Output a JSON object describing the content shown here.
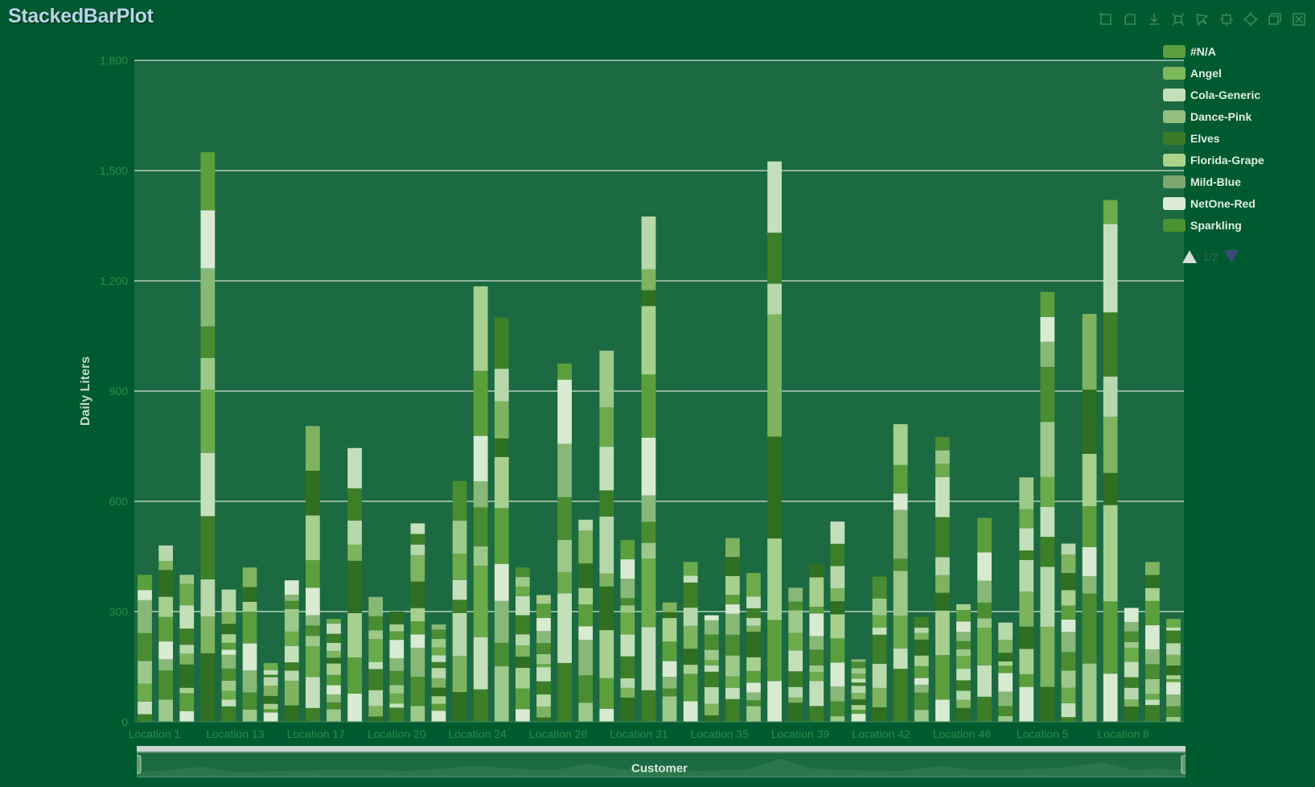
{
  "title": "StackedBarPlot",
  "toolbar": {
    "icons": [
      "rect-select-icon",
      "clear-select-icon",
      "download-icon",
      "zoom-rect-icon",
      "lasso-icon",
      "zoom-in-icon",
      "zoom-out-icon",
      "restore-icon",
      "close-icon"
    ]
  },
  "legend": {
    "items": [
      {
        "label": "#N/A",
        "color": "#5d9e3e"
      },
      {
        "label": "Angel",
        "color": "#7cb85a"
      },
      {
        "label": "Cola-Generic",
        "color": "#c2dfb8"
      },
      {
        "label": "Dance-Pink",
        "color": "#93bf80"
      },
      {
        "label": "Elves",
        "color": "#3b7a27"
      },
      {
        "label": "Florida-Grape",
        "color": "#a9d489"
      },
      {
        "label": "Mild-Blue",
        "color": "#7ea670"
      },
      {
        "label": "NetOne-Red",
        "color": "#dcebd4"
      },
      {
        "label": "Sparkling",
        "color": "#4b9330"
      }
    ],
    "page": "1/2"
  },
  "chart_data": {
    "type": "bar",
    "stacked": true,
    "ylabel": "Daily Liters",
    "xlabel": "Customer",
    "ylim": [
      0,
      1800
    ],
    "yticks": [
      0,
      300,
      600,
      900,
      1200,
      1500,
      1800
    ],
    "x_tick_labels": [
      "Location 1",
      "Location 13",
      "Location 17",
      "Location 20",
      "Location 24",
      "Location 28",
      "Location 31",
      "Location 35",
      "Location 39",
      "Location 42",
      "Location 46",
      "Location 5",
      "Location 8"
    ],
    "grid": true,
    "legend_position": "right",
    "stack_colors": [
      "#3d7f28",
      "#c4e0ba",
      "#6bab4c",
      "#9cc98a",
      "#4a8c31",
      "#88b878",
      "#d8ead0",
      "#5b9f3d",
      "#a7d08f",
      "#2f6f22",
      "#7eb35f",
      "#b7d8aa"
    ],
    "bar_totals": [
      400,
      480,
      400,
      1550,
      360,
      420,
      160,
      385,
      805,
      280,
      745,
      340,
      300,
      540,
      265,
      655,
      1185,
      1100,
      420,
      345,
      975,
      550,
      1010,
      495,
      1375,
      325,
      435,
      290,
      500,
      405,
      1525,
      365,
      430,
      545,
      170,
      395,
      810,
      285,
      775,
      320,
      555,
      270,
      665,
      1170,
      485,
      1110,
      1420,
      310,
      435,
      280
    ]
  }
}
